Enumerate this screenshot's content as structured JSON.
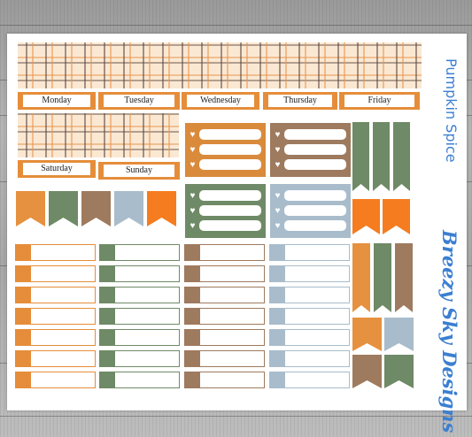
{
  "days": {
    "monday": "Monday",
    "tuesday": "Tuesday",
    "wednesday": "Wednesday",
    "thursday": "Thursday",
    "friday": "Friday",
    "saturday": "Saturday",
    "sunday": "Sunday"
  },
  "side": {
    "title": "Pumpkin Spice",
    "brand": "Breezy Sky Designs"
  },
  "colors": {
    "orange": "#e58d3a",
    "bright_orange": "#f57c1f",
    "green": "#6f8a66",
    "brown": "#9e7a5e",
    "blue": "#a9bccb",
    "text_blue": "#3b7fd1"
  },
  "icons": {
    "heart": "♥"
  }
}
